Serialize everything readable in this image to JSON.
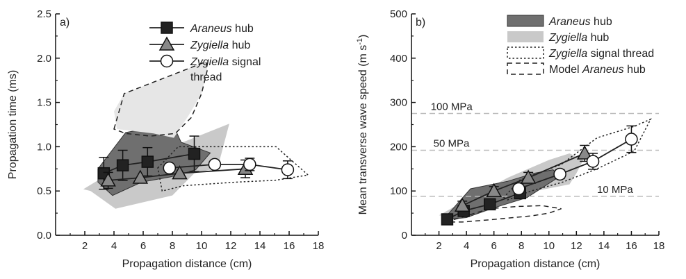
{
  "chart_data": [
    {
      "type": "line",
      "panel_label": "a)",
      "xlabel": "Propagation distance (cm)",
      "ylabel": "Propagation time (ms)",
      "xlim": [
        0,
        18
      ],
      "ylim": [
        0,
        2.5
      ],
      "xticks": [
        2,
        4,
        6,
        8,
        10,
        12,
        14,
        16,
        18
      ],
      "yticks": [
        "0.0",
        "0.5",
        "1.0",
        "1.5",
        "2.0",
        "2.5"
      ],
      "grid": false,
      "legend_position": "top-center",
      "legend": [
        {
          "italic": "Araneus",
          "rest": " hub",
          "marker": "square"
        },
        {
          "italic": "Zygiella",
          "rest": " hub",
          "marker": "triangle"
        },
        {
          "italic": "Zygiella",
          "rest": " signal",
          "line2": "thread",
          "marker": "circle"
        }
      ],
      "series": [
        {
          "name": "Araneus hub",
          "marker": "square",
          "color": "#222222",
          "x": [
            3.3,
            4.6,
            6.3,
            9.5
          ],
          "y": [
            0.7,
            0.79,
            0.83,
            0.92
          ],
          "err": [
            0.18,
            0.17,
            0.16,
            0.2
          ]
        },
        {
          "name": "Zygiella hub",
          "marker": "triangle",
          "color": "#888888",
          "x": [
            3.6,
            5.8,
            8.5,
            13.0
          ],
          "y": [
            0.62,
            0.65,
            0.7,
            0.75
          ],
          "err": [
            0.09,
            0.0,
            0.0,
            0.1
          ]
        },
        {
          "name": "Zygiella signal thread",
          "marker": "circle",
          "color": "#ffffff",
          "x": [
            7.8,
            10.9,
            13.3,
            15.9
          ],
          "y": [
            0.76,
            0.8,
            0.8,
            0.74
          ],
          "err": [
            0.0,
            0.0,
            0.07,
            0.1
          ]
        }
      ],
      "regions": [
        {
          "kind": "light",
          "points": [
            [
              1.9,
              0.52
            ],
            [
              4.2,
              0.75
            ],
            [
              8.4,
              1.03
            ],
            [
              11.9,
              1.26
            ],
            [
              11.1,
              0.76
            ],
            [
              9.5,
              0.7
            ],
            [
              8.0,
              0.45
            ],
            [
              4.1,
              0.3
            ],
            [
              2.4,
              0.5
            ]
          ]
        },
        {
          "kind": "dark",
          "points": [
            [
              2.9,
              0.75
            ],
            [
              4.8,
              1.16
            ],
            [
              6.7,
              1.22
            ],
            [
              7.6,
              1.41
            ],
            [
              8.6,
              1.05
            ],
            [
              10.6,
              0.93
            ],
            [
              9.6,
              0.74
            ],
            [
              7.9,
              0.66
            ],
            [
              5.9,
              0.6
            ],
            [
              3.9,
              0.45
            ],
            [
              2.9,
              0.6
            ]
          ]
        },
        {
          "kind": "lightest",
          "points": [
            [
              4.7,
              1.6
            ],
            [
              8.6,
              1.85
            ],
            [
              10.3,
              1.96
            ],
            [
              10.4,
              1.87
            ],
            [
              10.0,
              1.6
            ],
            [
              9.1,
              1.35
            ],
            [
              8.1,
              1.1
            ],
            [
              6.7,
              1.15
            ],
            [
              4.2,
              1.2
            ],
            [
              4.0,
              1.4
            ]
          ]
        },
        {
          "kind": "dashed",
          "points": [
            [
              4.0,
              1.2
            ],
            [
              4.7,
              1.6
            ],
            [
              8.6,
              1.85
            ],
            [
              10.3,
              1.96
            ],
            [
              10.4,
              1.87
            ],
            [
              10.0,
              1.6
            ],
            [
              9.3,
              1.33
            ],
            [
              8.2,
              1.15
            ],
            [
              6.5,
              1.12
            ],
            [
              4.8,
              1.15
            ]
          ]
        },
        {
          "kind": "dotted",
          "points": [
            [
              7.0,
              0.76
            ],
            [
              8.4,
              1.0
            ],
            [
              15.1,
              1.0
            ],
            [
              17.3,
              0.68
            ],
            [
              15.0,
              0.62
            ],
            [
              12.4,
              0.6
            ],
            [
              8.8,
              0.56
            ],
            [
              7.3,
              0.5
            ]
          ]
        }
      ]
    },
    {
      "type": "line",
      "panel_label": "b)",
      "xlabel": "Propagation distance (cm)",
      "ylabel": "Mean transverse wave speed (m s",
      "ylabel_sup": "-1",
      "ylabel_end": ")",
      "xlim": [
        0,
        18
      ],
      "ylim": [
        0,
        500
      ],
      "xticks": [
        2,
        4,
        6,
        8,
        10,
        12,
        14,
        16,
        18
      ],
      "yticks": [
        "0",
        "100",
        "200",
        "300",
        "400",
        "500"
      ],
      "grid": false,
      "legend_position": "top-right",
      "legend": [
        {
          "italic": "Araneus",
          "rest": " hub",
          "swatch": "dark"
        },
        {
          "italic": "Zygiella",
          "rest": " hub",
          "swatch": "light"
        },
        {
          "italic": "Zygiella",
          "rest": " signal thread",
          "swatch": "dotted"
        },
        {
          "italic": "Araneus",
          "pre": "Model ",
          "rest": " hub",
          "swatch": "dashed"
        }
      ],
      "reference_lines": [
        {
          "label": "100 MPa",
          "y": 275,
          "label_x": 1.4
        },
        {
          "label": "50 MPa",
          "y": 192,
          "label_x": 1.6
        },
        {
          "label": "10 MPa",
          "y": 88,
          "label_x": 13.5
        }
      ],
      "series": [
        {
          "name": "Araneus hub",
          "marker": "square",
          "color": "#222222",
          "x": [
            2.6,
            3.8,
            5.7,
            7.9
          ],
          "y": [
            36,
            55,
            70,
            95
          ],
          "err": [
            8,
            8,
            8,
            10
          ]
        },
        {
          "name": "Zygiella hub",
          "marker": "triangle",
          "color": "#888888",
          "x": [
            3.7,
            6.0,
            8.5,
            12.6
          ],
          "y": [
            67,
            100,
            130,
            185
          ],
          "err": [
            10,
            10,
            12,
            18
          ]
        },
        {
          "name": "Zygiella signal thread",
          "marker": "circle",
          "color": "#ffffff",
          "x": [
            7.8,
            10.8,
            13.2,
            16.0
          ],
          "y": [
            105,
            138,
            167,
            217
          ],
          "err": [
            10,
            10,
            18,
            30
          ]
        }
      ],
      "regions": [
        {
          "kind": "light",
          "points": [
            [
              2.0,
              45
            ],
            [
              4.0,
              80
            ],
            [
              7.0,
              130
            ],
            [
              10.0,
              170
            ],
            [
              11.5,
              185
            ],
            [
              12.5,
              170
            ],
            [
              12.0,
              140
            ],
            [
              11.5,
              115
            ],
            [
              9.0,
              100
            ],
            [
              6.0,
              60
            ],
            [
              4.0,
              40
            ]
          ]
        },
        {
          "kind": "dark",
          "points": [
            [
              2.3,
              35
            ],
            [
              4.3,
              105
            ],
            [
              7.0,
              122
            ],
            [
              8.9,
              140
            ],
            [
              10.3,
              148
            ],
            [
              10.8,
              133
            ],
            [
              8.4,
              85
            ],
            [
              5.8,
              60
            ],
            [
              4.0,
              40
            ]
          ]
        },
        {
          "kind": "dashed",
          "points": [
            [
              2.5,
              30
            ],
            [
              5.7,
              60
            ],
            [
              7.7,
              65
            ],
            [
              9.5,
              67
            ],
            [
              10.9,
              60
            ],
            [
              10.0,
              50
            ],
            [
              8.8,
              44
            ],
            [
              5.7,
              35
            ],
            [
              3.7,
              30
            ]
          ]
        },
        {
          "kind": "dotted",
          "points": [
            [
              6.7,
              85
            ],
            [
              7.9,
              125
            ],
            [
              10.9,
              160
            ],
            [
              13.5,
              220
            ],
            [
              16.2,
              246
            ],
            [
              17.4,
              262
            ],
            [
              16.2,
              190
            ],
            [
              13.5,
              150
            ],
            [
              11.0,
              120
            ],
            [
              8.7,
              100
            ],
            [
              7.0,
              80
            ]
          ]
        }
      ]
    }
  ]
}
